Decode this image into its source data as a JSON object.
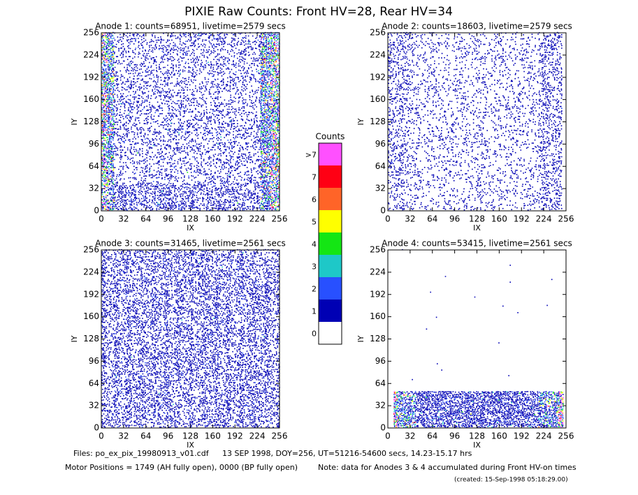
{
  "title": "PIXIE Raw Counts:  Front HV=28, Rear HV=34",
  "chart_data": [
    {
      "type": "heatmap",
      "title": "Anode 1: counts=68951, livetime=2579 secs",
      "xlabel": "IX",
      "ylabel": "IY",
      "xlim": [
        0,
        256
      ],
      "ylim": [
        0,
        256
      ],
      "xticks": [
        0,
        32,
        64,
        96,
        128,
        160,
        192,
        224,
        256
      ],
      "yticks": [
        0,
        32,
        64,
        96,
        128,
        160,
        192,
        224,
        256
      ]
    },
    {
      "type": "heatmap",
      "title": "Anode 2: counts=18603, livetime=2579 secs",
      "xlabel": "IX",
      "ylabel": "IY",
      "xlim": [
        0,
        256
      ],
      "ylim": [
        0,
        256
      ],
      "xticks": [
        0,
        32,
        64,
        96,
        128,
        160,
        192,
        224,
        256
      ],
      "yticks": [
        0,
        32,
        64,
        96,
        128,
        160,
        192,
        224,
        256
      ]
    },
    {
      "type": "heatmap",
      "title": "Anode 3: counts=31465, livetime=2561 secs",
      "xlabel": "IX",
      "ylabel": "IY",
      "xlim": [
        0,
        256
      ],
      "ylim": [
        0,
        256
      ],
      "xticks": [
        0,
        32,
        64,
        96,
        128,
        160,
        192,
        224,
        256
      ],
      "yticks": [
        0,
        32,
        64,
        96,
        128,
        160,
        192,
        224,
        256
      ]
    },
    {
      "type": "heatmap",
      "title": "Anode 4: counts=53415, livetime=2561 secs",
      "xlabel": "IX",
      "ylabel": "IY",
      "xlim": [
        0,
        256
      ],
      "ylim": [
        0,
        256
      ],
      "xticks": [
        0,
        32,
        64,
        96,
        128,
        160,
        192,
        224,
        256
      ],
      "yticks": [
        0,
        32,
        64,
        96,
        128,
        160,
        192,
        224,
        256
      ]
    }
  ],
  "colorbar": {
    "title": "Counts",
    "labels": [
      "0",
      "1",
      "2",
      "3",
      "4",
      "5",
      "6",
      "7",
      ">7"
    ],
    "colors": [
      "#ffffff",
      "#0000b4",
      "#2850ff",
      "#1ec8c8",
      "#14e614",
      "#ffff00",
      "#ff6428",
      "#ff0014",
      "#ff50ff"
    ]
  },
  "footer": {
    "files": "Files: po_ex_pix_19980913_v01.cdf",
    "date": "13 SEP 1998, DOY=256, UT=51216-54600 secs, 14.23-15.17 hrs",
    "motor": "Motor Positions = 1749 (AH fully open), 0000 (BP fully open)",
    "note": "Note: data for Anodes 3 & 4 accumulated during Front HV-on times",
    "created": "(created: 15-Sep-1998 05:18:29.00)"
  }
}
